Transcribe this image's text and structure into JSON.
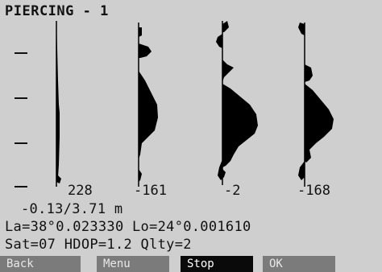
{
  "screen": {
    "title": "PIERCING - 1",
    "plot_values": [
      "228",
      "-161",
      "-2",
      "-168"
    ],
    "range_text": "-0.13/3.71 m",
    "coords_text": "La=38°0.023330 Lo=24°0.001610",
    "status_text": "Sat=07 HDOP=1.2 Qlty=2",
    "softkeys": [
      {
        "label": "Back",
        "state": "normal"
      },
      {
        "label": "Menu",
        "state": "normal"
      },
      {
        "label": "Stop",
        "state": "selected"
      },
      {
        "label": "OK",
        "state": "normal"
      }
    ]
  },
  "colors": {
    "screen_bg": "#cfcfcf",
    "ink": "#111111",
    "softkey_bg": "#7b7b7b",
    "softkey_selected_bg": "#0a0a0a"
  }
}
